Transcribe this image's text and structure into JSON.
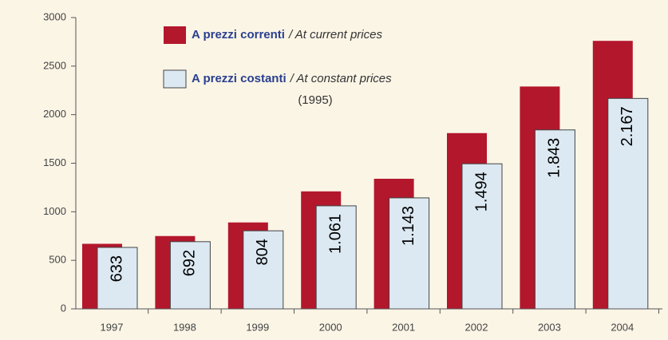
{
  "chart_data": {
    "type": "bar",
    "categories": [
      "1997",
      "1998",
      "1999",
      "2000",
      "2001",
      "2002",
      "2003",
      "2004"
    ],
    "series": [
      {
        "name": "A prezzi correnti",
        "name_en": "/ At current prices",
        "color": "#b3172c",
        "values": [
          670,
          750,
          890,
          1210,
          1340,
          1810,
          2290,
          2760
        ]
      },
      {
        "name": "A prezzi costanti",
        "name_en": "/ At constant prices",
        "name_note": "(1995)",
        "color": "#dce9f2",
        "values": [
          633,
          692,
          804,
          1061,
          1143,
          1494,
          1843,
          2167
        ],
        "value_labels": [
          "633",
          "692",
          "804",
          "1.061",
          "1.143",
          "1.494",
          "1.843",
          "2.167"
        ]
      }
    ],
    "ylim": [
      0,
      3000
    ],
    "yticks": [
      0,
      500,
      1000,
      1500,
      2000,
      2500,
      3000
    ],
    "grid": false
  }
}
